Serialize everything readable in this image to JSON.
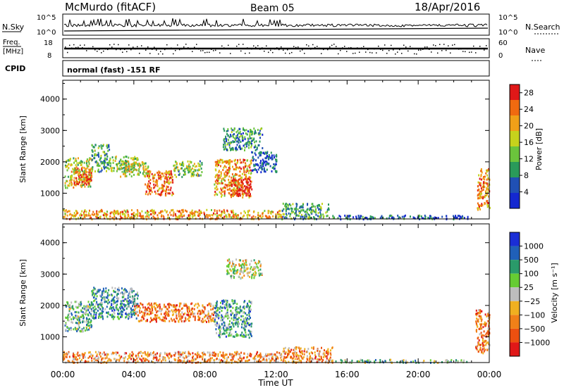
{
  "header": {
    "station": "McMurdo (fitACF)",
    "beam": "Beam 05",
    "date": "18/Apr/2016"
  },
  "top_panels": {
    "nsky_label": "N.Sky",
    "nsky_ticks": [
      "10^5",
      "10^0"
    ],
    "nsearch_label": "N.Search",
    "nsearch_ticks": [
      "10^5",
      "10^0"
    ],
    "freq_label": "Freq.",
    "freq_unit": "[MHz]",
    "freq_ticks": [
      "18",
      "8"
    ],
    "nave_label": "Nave",
    "nave_ticks": [
      "60",
      "0"
    ],
    "cpid_label": "CPID",
    "cpid_text": "normal (fast) -151 RF"
  },
  "chart_data": [
    {
      "type": "heatmap",
      "title": "",
      "xlabel": "Time UT",
      "ylabel": "Slant Range [km]",
      "x_ticks": [
        "00:00",
        "04:00",
        "08:00",
        "12:00",
        "16:00",
        "20:00",
        "00:00"
      ],
      "xlim_hours": [
        0,
        24
      ],
      "y_ticks": [
        1000,
        2000,
        3000,
        4000
      ],
      "ylim": [
        180,
        4600
      ],
      "colorbar": {
        "label": "Power [dB]",
        "ticks": [
          4,
          8,
          12,
          16,
          20,
          24,
          28
        ],
        "range": [
          0,
          30
        ],
        "colors": [
          "#1428d0",
          "#2050b4",
          "#2a9a5a",
          "#6bc43c",
          "#c6d21c",
          "#f0a018",
          "#f06a10",
          "#e01818"
        ]
      },
      "regions": [
        {
          "t": [
            0.1,
            1.6
          ],
          "r": [
            1200,
            2150
          ],
          "level": 0.55
        },
        {
          "t": [
            0.6,
            1.6
          ],
          "r": [
            1300,
            1850
          ],
          "level": 0.85
        },
        {
          "t": [
            1.6,
            2.6
          ],
          "r": [
            1700,
            2600
          ],
          "level": 0.35
        },
        {
          "t": [
            2.6,
            4.2
          ],
          "r": [
            1700,
            2200
          ],
          "level": 0.45
        },
        {
          "t": [
            3.2,
            4.8
          ],
          "r": [
            1550,
            2050
          ],
          "level": 0.55
        },
        {
          "t": [
            4.6,
            6.2
          ],
          "r": [
            950,
            1750
          ],
          "level": 0.8
        },
        {
          "t": [
            6.2,
            7.8
          ],
          "r": [
            1550,
            2050
          ],
          "level": 0.45
        },
        {
          "t": [
            8.5,
            10.6
          ],
          "r": [
            900,
            2100
          ],
          "level": 0.7
        },
        {
          "t": [
            9.4,
            10.6
          ],
          "r": [
            950,
            1500
          ],
          "level": 0.95
        },
        {
          "t": [
            9.0,
            11.2
          ],
          "r": [
            2400,
            3100
          ],
          "level": 0.3
        },
        {
          "t": [
            10.6,
            12.0
          ],
          "r": [
            1700,
            2350
          ],
          "level": 0.15
        },
        {
          "t": [
            0.0,
            12.3
          ],
          "r": [
            200,
            500
          ],
          "level": 0.7
        },
        {
          "t": [
            12.3,
            15.0
          ],
          "r": [
            200,
            700
          ],
          "level": 0.35
        },
        {
          "t": [
            15.0,
            22.8
          ],
          "r": [
            200,
            320
          ],
          "level": 0.2
        },
        {
          "t": [
            23.3,
            24.0
          ],
          "r": [
            500,
            1800
          ],
          "level": 0.75
        }
      ]
    },
    {
      "type": "heatmap",
      "title": "",
      "xlabel": "Time UT",
      "ylabel": "Slant Range [km]",
      "x_ticks": [
        "00:00",
        "04:00",
        "08:00",
        "12:00",
        "16:00",
        "20:00",
        "00:00"
      ],
      "xlim_hours": [
        0,
        24
      ],
      "y_ticks": [
        1000,
        2000,
        3000,
        4000
      ],
      "ylim": [
        180,
        4600
      ],
      "colorbar": {
        "label": "Velocity [m s⁻¹]",
        "ticks": [
          "1000",
          "500",
          "100",
          "25",
          "−25",
          "−100",
          "−500",
          "−1000"
        ],
        "colors": [
          "#1a2ed6",
          "#2060b8",
          "#2a9a6a",
          "#66cc33",
          "#bdbdbd",
          "#f0b020",
          "#f08018",
          "#ec5010",
          "#e01818"
        ]
      },
      "regions": [
        {
          "t": [
            0.1,
            1.6
          ],
          "r": [
            1200,
            2150
          ],
          "level": 0.35
        },
        {
          "t": [
            1.6,
            4.2
          ],
          "r": [
            1600,
            2600
          ],
          "level": 0.3
        },
        {
          "t": [
            4.0,
            8.5
          ],
          "r": [
            1500,
            2100
          ],
          "level": 0.72
        },
        {
          "t": [
            8.5,
            10.6
          ],
          "r": [
            1000,
            2200
          ],
          "level": 0.3
        },
        {
          "t": [
            9.2,
            11.2
          ],
          "r": [
            2900,
            3500
          ],
          "level": 0.5
        },
        {
          "t": [
            0.0,
            12.3
          ],
          "r": [
            200,
            550
          ],
          "level": 0.7
        },
        {
          "t": [
            12.3,
            15.2
          ],
          "r": [
            200,
            700
          ],
          "level": 0.7
        },
        {
          "t": [
            15.2,
            22.8
          ],
          "r": [
            200,
            300
          ],
          "level": 0.4
        },
        {
          "t": [
            23.2,
            24.0
          ],
          "r": [
            500,
            1900
          ],
          "level": 0.75
        }
      ]
    }
  ]
}
